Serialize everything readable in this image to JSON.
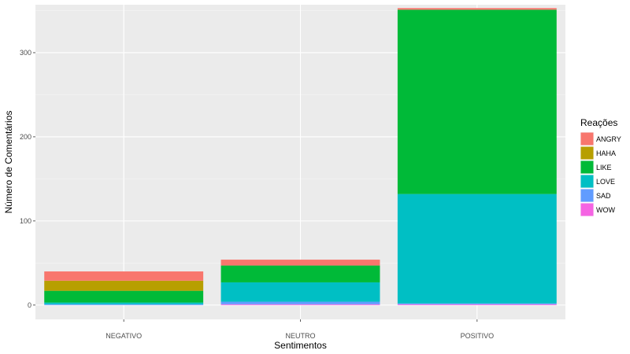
{
  "chart_data": {
    "type": "bar",
    "stacked": true,
    "title": "",
    "xlabel": "Sentimentos",
    "ylabel": "Número de Comentários",
    "categories": [
      "NEGATIVO",
      "NEUTRO",
      "POSITIVO"
    ],
    "ylim": [
      -17,
      357
    ],
    "yticks": [
      0,
      100,
      200,
      300
    ],
    "grid": true,
    "legend": {
      "title": "Reações",
      "placement": "right"
    },
    "series": [
      {
        "name": "ANGRY",
        "color": "#F8766D",
        "values": [
          11,
          7,
          2
        ]
      },
      {
        "name": "HAHA",
        "color": "#B79F00",
        "values": [
          12,
          0,
          0
        ]
      },
      {
        "name": "LIKE",
        "color": "#00BA38",
        "values": [
          14,
          20,
          219
        ]
      },
      {
        "name": "LOVE",
        "color": "#00BFC4",
        "values": [
          2,
          23,
          130
        ]
      },
      {
        "name": "SAD",
        "color": "#619CFF",
        "values": [
          1,
          3,
          1
        ]
      },
      {
        "name": "WOW",
        "color": "#F564E3",
        "values": [
          0,
          1,
          1
        ]
      }
    ]
  }
}
